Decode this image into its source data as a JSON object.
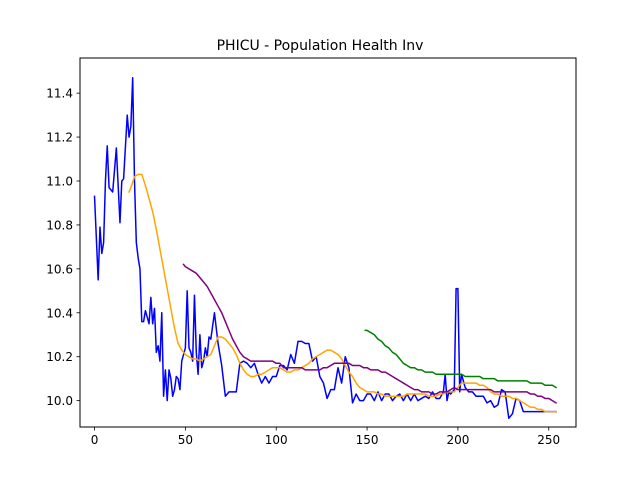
{
  "chart_data": {
    "type": "line",
    "title": "PHICU - Population Health Inv",
    "xlabel": "",
    "ylabel": "",
    "xlim": [
      -8,
      265
    ],
    "ylim": [
      9.88,
      11.56
    ],
    "xticks": [
      0,
      50,
      100,
      150,
      200,
      250
    ],
    "yticks": [
      10.0,
      10.2,
      10.4,
      10.6,
      10.8,
      11.0,
      11.2,
      11.4
    ],
    "ytick_labels": [
      "10.0",
      "10.2",
      "10.4",
      "10.6",
      "10.8",
      "11.0",
      "11.2",
      "11.4"
    ],
    "grid": false,
    "series": [
      {
        "color": "#0000ff",
        "x": [
          0,
          2,
          3,
          4,
          5,
          6,
          7,
          8,
          10,
          12,
          13,
          14,
          15,
          16,
          18,
          19,
          20,
          21,
          22,
          23,
          24,
          25,
          26,
          27,
          28,
          30,
          31,
          32,
          33,
          34,
          35,
          36,
          37,
          38,
          39,
          40,
          41,
          42,
          43,
          44,
          45,
          46,
          47,
          48,
          50,
          51,
          52,
          53,
          54,
          55,
          56,
          57,
          58,
          59,
          60,
          61,
          62,
          63,
          64,
          65,
          66,
          67,
          68,
          70,
          72,
          74,
          76,
          78,
          80,
          82,
          84,
          86,
          88,
          90,
          92,
          94,
          96,
          98,
          100,
          102,
          104,
          106,
          108,
          110,
          112,
          114,
          116,
          118,
          120,
          122,
          124,
          126,
          128,
          130,
          132,
          134,
          136,
          138,
          140,
          142,
          144,
          146,
          148,
          150,
          152,
          154,
          156,
          158,
          160,
          162,
          164,
          166,
          168,
          170,
          172,
          174,
          176,
          178,
          180,
          182,
          184,
          186,
          188,
          190,
          192,
          193,
          194,
          195,
          196,
          198,
          199,
          200,
          201,
          202,
          204,
          206,
          208,
          210,
          212,
          214,
          216,
          218,
          220,
          222,
          224,
          226,
          228,
          230,
          232,
          234,
          236,
          238,
          240,
          242,
          244,
          246,
          248,
          250,
          252,
          254
        ],
        "values": [
          10.93,
          10.55,
          10.79,
          10.67,
          10.72,
          11.0,
          11.16,
          10.97,
          10.95,
          11.15,
          10.98,
          10.81,
          11.0,
          11.01,
          11.3,
          11.2,
          11.25,
          11.47,
          11.0,
          10.72,
          10.65,
          10.6,
          10.36,
          10.36,
          10.41,
          10.35,
          10.47,
          10.35,
          10.42,
          10.22,
          10.25,
          10.18,
          10.4,
          10.02,
          10.14,
          10.0,
          10.14,
          10.1,
          10.02,
          10.05,
          10.11,
          10.1,
          10.05,
          10.18,
          10.24,
          10.5,
          10.24,
          10.22,
          10.18,
          10.48,
          10.22,
          10.12,
          10.3,
          10.15,
          10.18,
          10.24,
          10.2,
          10.29,
          10.28,
          10.34,
          10.4,
          10.33,
          10.26,
          10.16,
          10.02,
          10.04,
          10.04,
          10.04,
          10.17,
          10.18,
          10.17,
          10.15,
          10.17,
          10.12,
          10.08,
          10.11,
          10.08,
          10.11,
          10.11,
          10.16,
          10.16,
          10.14,
          10.21,
          10.17,
          10.27,
          10.27,
          10.26,
          10.26,
          10.18,
          10.2,
          10.11,
          10.08,
          10.01,
          10.05,
          10.05,
          10.15,
          10.08,
          10.2,
          10.15,
          9.99,
          10.03,
          10.0,
          10.0,
          10.03,
          10.03,
          10.0,
          10.04,
          10.0,
          10.03,
          10.03,
          10.0,
          10.02,
          10.03,
          10.0,
          10.03,
          10.0,
          10.03,
          10.0,
          10.01,
          10.02,
          10.01,
          10.04,
          10.01,
          10.01,
          10.04,
          10.12,
          10.0,
          10.04,
          10.03,
          10.05,
          10.51,
          10.51,
          10.04,
          10.12,
          10.06,
          10.04,
          10.04,
          10.02,
          10.02,
          10.02,
          9.99,
          10.0,
          9.97,
          9.98,
          10.05,
          10.04,
          9.92,
          9.94,
          10.01,
          10.0,
          9.95,
          9.95,
          9.95,
          9.95,
          9.95,
          9.95,
          9.95,
          9.95,
          9.95,
          9.95
        ]
      },
      {
        "color": "#ffa500",
        "x": [
          19,
          20,
          22,
          24,
          26,
          28,
          30,
          32,
          34,
          36,
          38,
          40,
          42,
          44,
          46,
          48,
          50,
          52,
          54,
          56,
          58,
          60,
          62,
          64,
          66,
          68,
          70,
          72,
          74,
          76,
          78,
          80,
          82,
          84,
          86,
          88,
          90,
          92,
          94,
          96,
          98,
          100,
          102,
          104,
          106,
          108,
          110,
          112,
          114,
          116,
          118,
          120,
          122,
          124,
          126,
          128,
          130,
          132,
          134,
          136,
          138,
          140,
          142,
          144,
          146,
          148,
          150,
          152,
          154,
          156,
          158,
          160,
          162,
          164,
          166,
          168,
          170,
          172,
          174,
          176,
          178,
          180,
          182,
          184,
          186,
          188,
          190,
          192,
          194,
          196,
          198,
          200,
          202,
          204,
          206,
          208,
          210,
          212,
          214,
          216,
          218,
          220,
          222,
          224,
          226,
          228,
          230,
          232,
          234,
          236,
          238,
          240,
          242,
          244,
          246,
          248,
          250,
          252,
          254
        ],
        "values": [
          10.95,
          10.97,
          11.02,
          11.03,
          11.03,
          10.98,
          10.92,
          10.86,
          10.78,
          10.69,
          10.6,
          10.51,
          10.42,
          10.33,
          10.26,
          10.23,
          10.21,
          10.2,
          10.19,
          10.19,
          10.18,
          10.19,
          10.2,
          10.21,
          10.25,
          10.29,
          10.29,
          10.28,
          10.26,
          10.24,
          10.21,
          10.17,
          10.14,
          10.12,
          10.11,
          10.11,
          10.12,
          10.12,
          10.13,
          10.14,
          10.15,
          10.15,
          10.15,
          10.14,
          10.13,
          10.13,
          10.14,
          10.14,
          10.15,
          10.16,
          10.17,
          10.19,
          10.2,
          10.21,
          10.22,
          10.23,
          10.23,
          10.22,
          10.21,
          10.19,
          10.16,
          10.13,
          10.11,
          10.08,
          10.06,
          10.05,
          10.04,
          10.04,
          10.04,
          10.03,
          10.03,
          10.02,
          10.02,
          10.02,
          10.02,
          10.02,
          10.02,
          10.03,
          10.03,
          10.03,
          10.03,
          10.03,
          10.03,
          10.02,
          10.02,
          10.02,
          10.03,
          10.03,
          10.04,
          10.04,
          10.04,
          10.06,
          10.08,
          10.08,
          10.08,
          10.08,
          10.08,
          10.07,
          10.07,
          10.06,
          10.04,
          10.03,
          10.03,
          10.02,
          10.02,
          10.02,
          10.01,
          10.01,
          10.0,
          9.99,
          9.98,
          9.97,
          9.97,
          9.96,
          9.96,
          9.95,
          9.95,
          9.95,
          9.95
        ]
      },
      {
        "color": "#800080",
        "x": [
          49,
          50,
          52,
          54,
          56,
          58,
          60,
          62,
          64,
          66,
          68,
          70,
          72,
          74,
          76,
          78,
          80,
          82,
          84,
          86,
          88,
          90,
          92,
          94,
          96,
          98,
          100,
          102,
          104,
          106,
          108,
          110,
          112,
          114,
          116,
          118,
          120,
          122,
          124,
          126,
          128,
          130,
          132,
          134,
          136,
          138,
          140,
          142,
          144,
          146,
          148,
          150,
          152,
          154,
          156,
          158,
          160,
          162,
          164,
          166,
          168,
          170,
          172,
          174,
          176,
          178,
          180,
          182,
          184,
          186,
          188,
          190,
          192,
          194,
          196,
          198,
          200,
          202,
          204,
          206,
          208,
          210,
          212,
          214,
          216,
          218,
          220,
          222,
          224,
          226,
          228,
          230,
          232,
          234,
          236,
          238,
          240,
          242,
          244,
          246,
          248,
          250,
          252,
          254
        ],
        "values": [
          10.62,
          10.61,
          10.6,
          10.59,
          10.58,
          10.56,
          10.54,
          10.52,
          10.49,
          10.46,
          10.43,
          10.4,
          10.36,
          10.32,
          10.28,
          10.25,
          10.22,
          10.2,
          10.19,
          10.18,
          10.18,
          10.18,
          10.18,
          10.18,
          10.18,
          10.18,
          10.17,
          10.17,
          10.15,
          10.15,
          10.15,
          10.15,
          10.15,
          10.15,
          10.14,
          10.14,
          10.14,
          10.14,
          10.14,
          10.15,
          10.15,
          10.16,
          10.17,
          10.17,
          10.17,
          10.17,
          10.17,
          10.16,
          10.16,
          10.16,
          10.15,
          10.15,
          10.14,
          10.14,
          10.14,
          10.13,
          10.13,
          10.12,
          10.11,
          10.1,
          10.09,
          10.08,
          10.07,
          10.06,
          10.05,
          10.05,
          10.04,
          10.04,
          10.04,
          10.03,
          10.03,
          10.04,
          10.04,
          10.04,
          10.05,
          10.06,
          10.05,
          10.05,
          10.05,
          10.05,
          10.05,
          10.05,
          10.05,
          10.05,
          10.05,
          10.05,
          10.04,
          10.04,
          10.04,
          10.04,
          10.04,
          10.04,
          10.04,
          10.04,
          10.04,
          10.04,
          10.03,
          10.03,
          10.02,
          10.02,
          10.01,
          10.01,
          10.0,
          9.99
        ]
      },
      {
        "color": "#008000",
        "x": [
          149,
          150,
          152,
          154,
          156,
          158,
          160,
          162,
          164,
          166,
          168,
          170,
          172,
          174,
          176,
          178,
          180,
          182,
          184,
          186,
          188,
          190,
          192,
          194,
          196,
          198,
          200,
          202,
          204,
          206,
          208,
          210,
          212,
          214,
          216,
          218,
          220,
          222,
          224,
          226,
          228,
          230,
          232,
          234,
          236,
          238,
          240,
          242,
          244,
          246,
          248,
          250,
          252,
          254
        ],
        "values": [
          10.32,
          10.32,
          10.31,
          10.3,
          10.28,
          10.27,
          10.25,
          10.24,
          10.22,
          10.21,
          10.19,
          10.17,
          10.16,
          10.15,
          10.15,
          10.14,
          10.14,
          10.13,
          10.13,
          10.13,
          10.12,
          10.12,
          10.12,
          10.12,
          10.12,
          10.12,
          10.12,
          10.12,
          10.11,
          10.11,
          10.11,
          10.11,
          10.11,
          10.1,
          10.1,
          10.1,
          10.1,
          10.09,
          10.09,
          10.09,
          10.09,
          10.09,
          10.09,
          10.09,
          10.09,
          10.09,
          10.08,
          10.08,
          10.08,
          10.08,
          10.07,
          10.07,
          10.07,
          10.06
        ]
      }
    ]
  }
}
